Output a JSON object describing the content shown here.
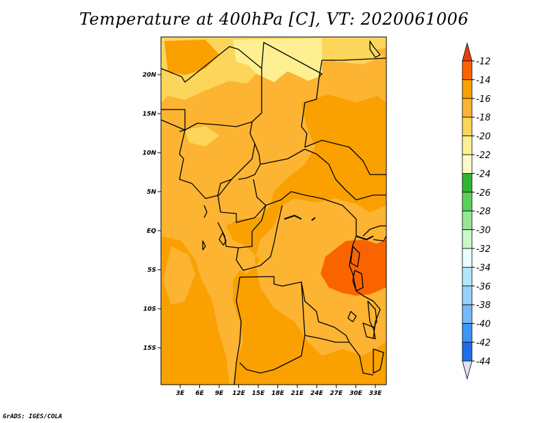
{
  "title": "Temperature at 400hPa [C], VT: 2020061006",
  "credit": "GrADS: IGES/COLA",
  "map": {
    "lat_labels": [
      "20N",
      "15N",
      "10N",
      "5N",
      "EQ",
      "5S",
      "10S",
      "15S"
    ],
    "lon_labels": [
      "3E",
      "6E",
      "9E",
      "12E",
      "15E",
      "18E",
      "21E",
      "24E",
      "27E",
      "30E",
      "33E"
    ]
  },
  "colorbar": {
    "labels": [
      "-12",
      "-14",
      "-16",
      "-18",
      "-20",
      "-22",
      "-24",
      "-26",
      "-28",
      "-30",
      "-32",
      "-34",
      "-36",
      "-38",
      "-40",
      "-42",
      "-44"
    ],
    "colors": [
      "#ea3c10",
      "#fa6400",
      "#faa000",
      "#fcb432",
      "#fcd65a",
      "#fef092",
      "#fefbc8",
      "#32b432",
      "#5ad25a",
      "#96e696",
      "#c8fac8",
      "#e6ffff",
      "#b4e6fa",
      "#96d2fa",
      "#78b9fa",
      "#3c96f5",
      "#1e6eeb",
      "#1450d2",
      "#0a3cb4",
      "#0a0a82",
      "#e1e1f5"
    ]
  }
}
